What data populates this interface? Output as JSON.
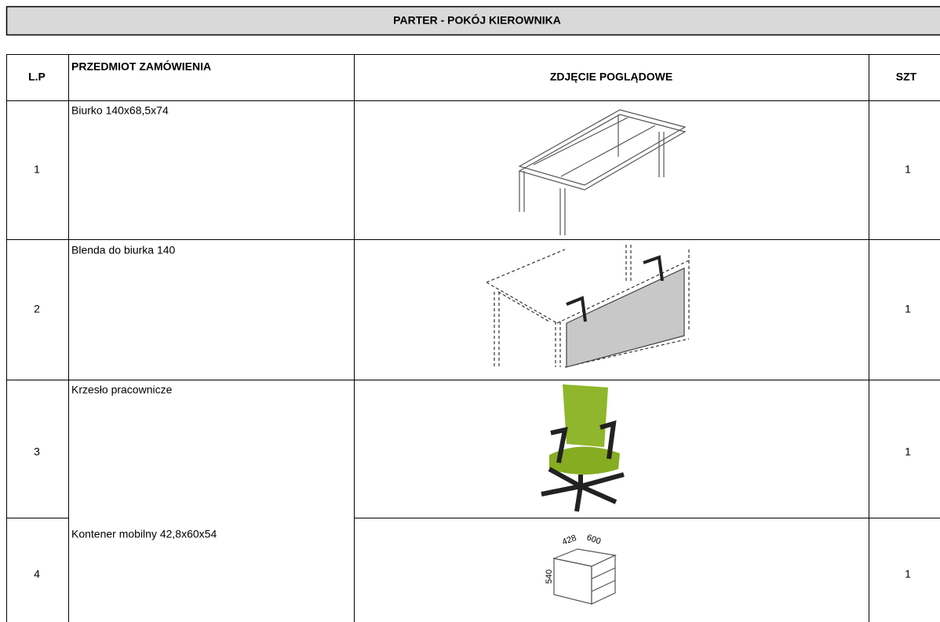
{
  "header": {
    "title": "PARTER - POKÓJ KIEROWNIKA"
  },
  "table": {
    "headers": [
      "L.P",
      "PRZEDMIOT ZAMÓWIENIA",
      "ZDJĘCIE POGLĄDOWE",
      "SZT"
    ],
    "rows": [
      {
        "lp": "1",
        "item": "Biurko 140x68,5x74",
        "qty": "1"
      },
      {
        "lp": "2",
        "item": "Blenda do biurka 140",
        "qty": "1"
      },
      {
        "lp": "3",
        "item": "Krzesło pracownicze",
        "qty": "1"
      },
      {
        "lp": "4",
        "item": "Kontener mobilny 42,8x60x54",
        "qty": "1",
        "image_labels": [
          "428",
          "600",
          "540"
        ]
      }
    ]
  }
}
